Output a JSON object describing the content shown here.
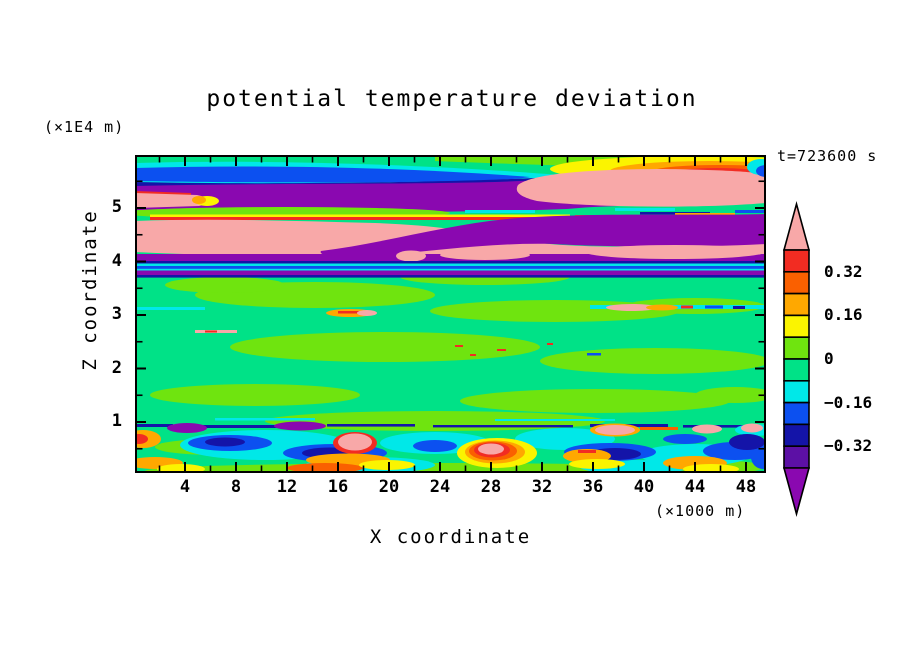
{
  "chart_data": {
    "type": "heatmap",
    "title": "potential temperature deviation",
    "xlabel": "X coordinate",
    "ylabel": "Z coordinate",
    "x_unit_label": "(×1000 m)",
    "y_unit_label": "(×1E4 m)",
    "annotation": "t=723600 s",
    "x_axis": {
      "tick_labels": [
        "4",
        "8",
        "12",
        "16",
        "20",
        "24",
        "28",
        "32",
        "36",
        "40",
        "44",
        "48"
      ],
      "tick_values": [
        4,
        8,
        12,
        16,
        20,
        24,
        28,
        32,
        36,
        40,
        44,
        48
      ],
      "minor_tick_values": [
        2,
        6,
        10,
        14,
        18,
        22,
        26,
        30,
        34,
        38,
        42,
        46
      ],
      "range": [
        0,
        49.6
      ]
    },
    "y_axis": {
      "tick_labels": [
        "1",
        "2",
        "3",
        "4",
        "5"
      ],
      "tick_values": [
        1,
        2,
        3,
        4,
        5
      ],
      "minor_tick_values": [
        0.5,
        1.5,
        2.5,
        3.5,
        4.5,
        5.5
      ],
      "range": [
        0,
        6
      ]
    },
    "colorbar": {
      "labels": [
        "0.32",
        "0.16",
        "0",
        "−0.16",
        "−0.32"
      ],
      "label_boundary_indices": [
        1,
        3,
        5,
        7,
        9
      ],
      "levels_top_to_bottom": [
        0.4,
        0.32,
        0.24,
        0.16,
        0.08,
        0,
        -0.08,
        -0.16,
        -0.24,
        -0.32,
        -0.4
      ],
      "box_colors_top_to_bottom": [
        "#f22c22",
        "#fa6000",
        "#ffa800",
        "#fbf400",
        "#6fe40f",
        "#00e287",
        "#00e8e8",
        "#0c50f0",
        "#1414a8",
        "#5c10a5"
      ],
      "over_arrow_color": "#f8a8a8",
      "under_arrow_color": "#8a08b0"
    },
    "palette": {
      "pink": "#f8a8a8",
      "red": "#f22c22",
      "orange_red": "#fa6000",
      "orange": "#ffa800",
      "yellow": "#fbf400",
      "chartreuse": "#6fe40f",
      "spring_green": "#00e287",
      "cyan": "#00e8e8",
      "blue": "#0c50f0",
      "navy": "#1414a8",
      "indigo": "#5c10a5",
      "purple": "#8a08b0"
    },
    "field_summary": "Stratified atmospheric field: deep purple band near z=5.5e4 m over pink warm layers (z≈4.2-5e4 m) separated by thin red/yellow rims and navy/cyan stripes near z=4e4 m; broad spring-green region with chartreuse patches for z=1-3.8e4 m; turbulent convective layer below z≈1e4 m with cyan/blue/navy eddies and yellow/orange/red/pink plumes."
  }
}
